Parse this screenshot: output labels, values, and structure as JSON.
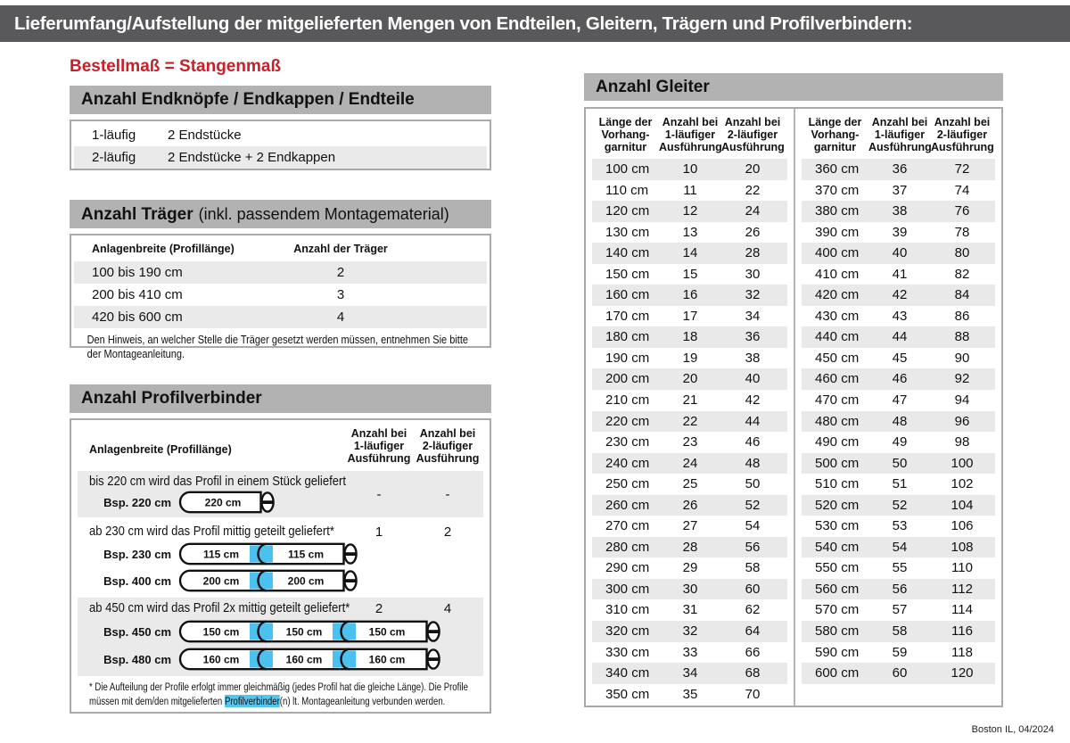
{
  "title": "Lieferumfang/Aufstellung der mitgelieferten Mengen von Endteilen, Gleitern, Trägern und Profilverbindern:",
  "subtitle": "Bestellmaß = Stangenmaß",
  "colors": {
    "titlebar": "#59585a",
    "section_bar": "#b2b2b2",
    "stripe": "#eaeaea",
    "accent_red": "#c8202a",
    "connector_blue": "#4ac1ef"
  },
  "end_pieces": {
    "header": "Anzahl Endknöpfe / Endkappen / Endteile",
    "rows": [
      {
        "type": "1-läufig",
        "content": "2 Endstücke"
      },
      {
        "type": "2-läufig",
        "content": "2 Endstücke + 2 Endkappen"
      }
    ]
  },
  "traeger": {
    "header_bold": "Anzahl Träger",
    "header_rest": "(inkl. passendem Montagematerial)",
    "col1": "Anlagenbreite (Profillänge)",
    "col2": "Anzahl der Träger",
    "rows": [
      {
        "range": "100 bis 190 cm",
        "count": "2"
      },
      {
        "range": "200 bis 410 cm",
        "count": "3"
      },
      {
        "range": "420 bis 600 cm",
        "count": "4"
      }
    ],
    "note": "Den Hinweis, an welcher Stelle die Träger gesetzt werden müssen, entnehmen Sie bitte der Montageanleitung."
  },
  "profilverbinder": {
    "header": "Anzahl Profilverbinder",
    "col1": "Anlagenbreite (Profillänge)",
    "col_1laeufig": "Anzahl bei\n1-läufiger\nAusführung",
    "col_2laeufig": "Anzahl bei\n2-läufiger\nAusführung",
    "groups": [
      {
        "text": "bis 220 cm wird das Profil in einem Stück geliefert",
        "v1": "-",
        "v2": "-",
        "examples": [
          {
            "label": "Bsp. 220 cm",
            "segments": [
              "220 cm"
            ]
          }
        ]
      },
      {
        "text": "ab 230 cm wird das Profil mittig geteilt geliefert*",
        "v1": "1",
        "v2": "2",
        "examples": [
          {
            "label": "Bsp. 230 cm",
            "segments": [
              "115 cm",
              "115 cm"
            ]
          },
          {
            "label": "Bsp. 400 cm",
            "segments": [
              "200 cm",
              "200 cm"
            ]
          }
        ]
      },
      {
        "text": "ab 450 cm wird das Profil 2x mittig geteilt geliefert*",
        "v1": "2",
        "v2": "4",
        "examples": [
          {
            "label": "Bsp. 450 cm",
            "segments": [
              "150 cm",
              "150 cm",
              "150 cm"
            ]
          },
          {
            "label": "Bsp. 480 cm",
            "segments": [
              "160 cm",
              "160 cm",
              "160 cm"
            ]
          }
        ]
      }
    ],
    "footnote_pre": "* Die Aufteilung der Profile erfolgt immer gleichmäßig (jedes Profil hat die gleiche Länge). Die Profile müssen mit dem/den mitgelieferten ",
    "footnote_highlight": "Profilverbinder",
    "footnote_post": "(n) lt. Montageanleitung verbunden werden."
  },
  "gleiter": {
    "header": "Anzahl Gleiter",
    "col_headers": [
      "Länge der\nVorhang-\ngarnitur",
      "Anzahl bei\n1-läufiger\nAusführung",
      "Anzahl bei\n2-läufiger\nAusführung"
    ],
    "left_rows": [
      [
        "100 cm",
        "10",
        "20"
      ],
      [
        "110 cm",
        "11",
        "22"
      ],
      [
        "120 cm",
        "12",
        "24"
      ],
      [
        "130 cm",
        "13",
        "26"
      ],
      [
        "140 cm",
        "14",
        "28"
      ],
      [
        "150 cm",
        "15",
        "30"
      ],
      [
        "160 cm",
        "16",
        "32"
      ],
      [
        "170 cm",
        "17",
        "34"
      ],
      [
        "180 cm",
        "18",
        "36"
      ],
      [
        "190 cm",
        "19",
        "38"
      ],
      [
        "200 cm",
        "20",
        "40"
      ],
      [
        "210 cm",
        "21",
        "42"
      ],
      [
        "220 cm",
        "22",
        "44"
      ],
      [
        "230 cm",
        "23",
        "46"
      ],
      [
        "240 cm",
        "24",
        "48"
      ],
      [
        "250 cm",
        "25",
        "50"
      ],
      [
        "260 cm",
        "26",
        "52"
      ],
      [
        "270 cm",
        "27",
        "54"
      ],
      [
        "280 cm",
        "28",
        "56"
      ],
      [
        "290 cm",
        "29",
        "58"
      ],
      [
        "300 cm",
        "30",
        "60"
      ],
      [
        "310 cm",
        "31",
        "62"
      ],
      [
        "320 cm",
        "32",
        "64"
      ],
      [
        "330 cm",
        "33",
        "66"
      ],
      [
        "340 cm",
        "34",
        "68"
      ],
      [
        "350 cm",
        "35",
        "70"
      ]
    ],
    "right_rows": [
      [
        "360 cm",
        "36",
        "72"
      ],
      [
        "370 cm",
        "37",
        "74"
      ],
      [
        "380 cm",
        "38",
        "76"
      ],
      [
        "390 cm",
        "39",
        "78"
      ],
      [
        "400 cm",
        "40",
        "80"
      ],
      [
        "410 cm",
        "41",
        "82"
      ],
      [
        "420 cm",
        "42",
        "84"
      ],
      [
        "430 cm",
        "43",
        "86"
      ],
      [
        "440 cm",
        "44",
        "88"
      ],
      [
        "450 cm",
        "45",
        "90"
      ],
      [
        "460 cm",
        "46",
        "92"
      ],
      [
        "470 cm",
        "47",
        "94"
      ],
      [
        "480 cm",
        "48",
        "96"
      ],
      [
        "490 cm",
        "49",
        "98"
      ],
      [
        "500 cm",
        "50",
        "100"
      ],
      [
        "510 cm",
        "51",
        "102"
      ],
      [
        "520 cm",
        "52",
        "104"
      ],
      [
        "530 cm",
        "53",
        "106"
      ],
      [
        "540 cm",
        "54",
        "108"
      ],
      [
        "550 cm",
        "55",
        "110"
      ],
      [
        "560 cm",
        "56",
        "112"
      ],
      [
        "570 cm",
        "57",
        "114"
      ],
      [
        "580 cm",
        "58",
        "116"
      ],
      [
        "590 cm",
        "59",
        "118"
      ],
      [
        "600 cm",
        "60",
        "120"
      ]
    ]
  },
  "footer": "Boston IL, 04/2024"
}
